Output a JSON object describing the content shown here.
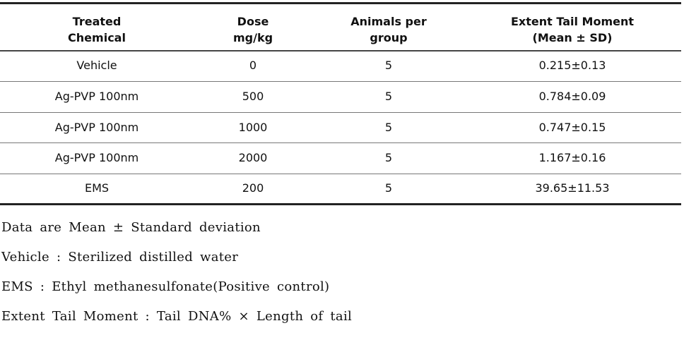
{
  "table": {
    "header": [
      [
        "Treated",
        "Chemical"
      ],
      [
        "Dose",
        "mg/kg"
      ],
      [
        "Animals per",
        "group"
      ],
      [
        "Extent Tail Moment",
        "(Mean ± SD)"
      ]
    ],
    "rows": [
      [
        "Vehicle",
        "0",
        "5",
        "0.215±0.13"
      ],
      [
        "Ag-PVP 100nm",
        "500",
        "5",
        "0.784±0.09"
      ],
      [
        "Ag-PVP 100nm",
        "1000",
        "5",
        "0.747±0.15"
      ],
      [
        "Ag-PVP 100nm",
        "2000",
        "5",
        "1.167±0.16"
      ],
      [
        "EMS",
        "200",
        "5",
        "39.65±11.53"
      ]
    ]
  },
  "notes": [
    "Data are Mean ± Standard deviation",
    "Vehicle : Sterilized distilled water",
    "EMS : Ethyl methanesulfonate(Positive control)",
    "Extent Tail Moment : Tail DNA% × Length of tail"
  ]
}
